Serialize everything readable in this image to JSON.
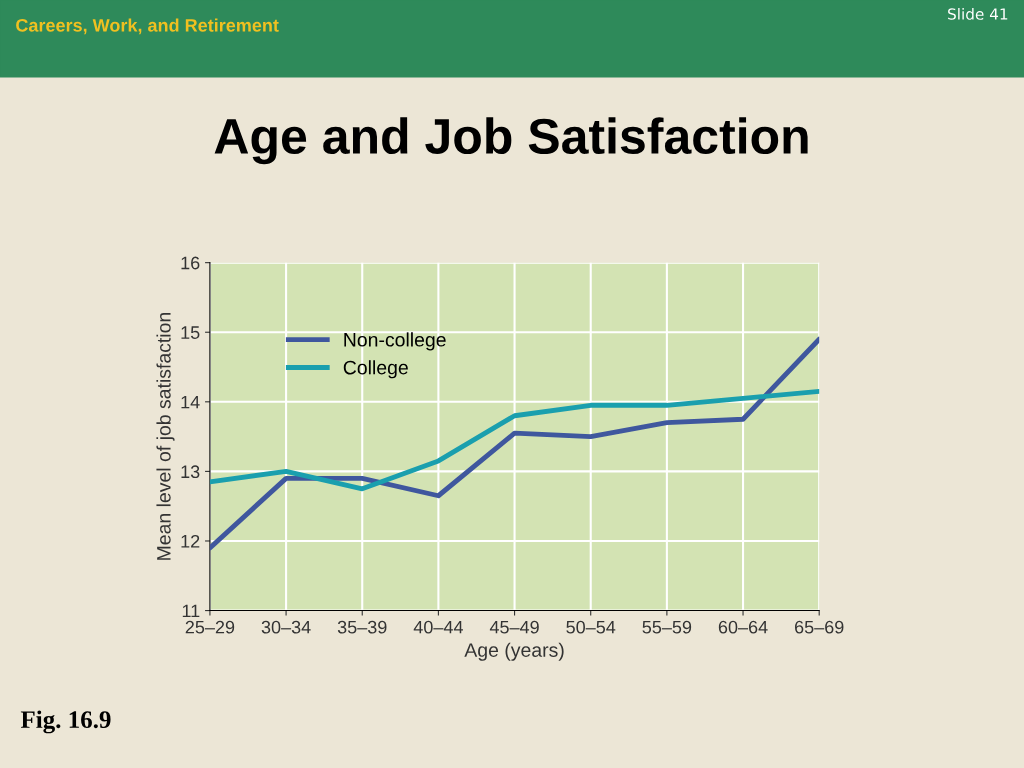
{
  "chart_data": {
    "type": "line",
    "title": "Age and Job Satisfaction",
    "subtitle": "Careers, Work, and Retirement",
    "xlabel": "Age (years)",
    "ylabel": "Mean level of job satisfaction",
    "categories": [
      "25–29",
      "30–34",
      "35–39",
      "40–44",
      "45–49",
      "50–54",
      "55–59",
      "60–64",
      "65–69"
    ],
    "series": [
      {
        "name": "Non-college",
        "color": "#3f579e",
        "values": [
          11.9,
          12.9,
          12.9,
          12.65,
          13.55,
          13.5,
          13.7,
          13.75,
          14.9
        ]
      },
      {
        "name": "College",
        "color": "#1a9fae",
        "values": [
          12.85,
          13.0,
          12.75,
          13.15,
          13.8,
          13.95,
          13.95,
          14.05,
          14.15
        ]
      }
    ],
    "ylim": [
      11,
      16
    ],
    "yticks": [
      11,
      12,
      13,
      14,
      15,
      16
    ],
    "grid": true,
    "legend": "top left",
    "marker": "none",
    "line_style": "solid",
    "annotations": [
      "Slide 41",
      "Fig. 16.9"
    ]
  }
}
